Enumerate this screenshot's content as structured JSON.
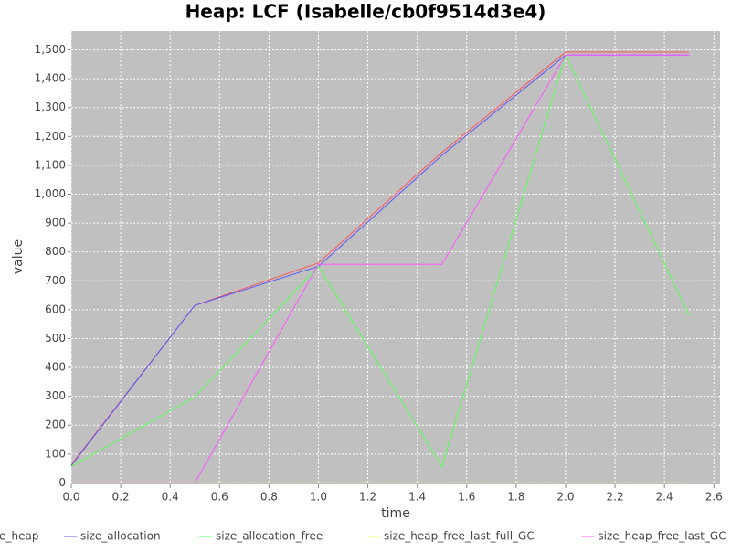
{
  "chart_data": {
    "type": "line",
    "title": "Heap: LCF (Isabelle/cb0f9514d3e4)",
    "x_label": "time",
    "y_label": "value",
    "x": [
      0.0,
      0.5,
      1.0,
      1.5,
      2.0,
      2.5
    ],
    "series": [
      {
        "name": "size_heap",
        "color": "#ff5555",
        "values": [
          63,
          615,
          762,
          1145,
          1492,
          1492
        ]
      },
      {
        "name": "size_allocation",
        "color": "#5555ff",
        "values": [
          60,
          615,
          750,
          1135,
          1482,
          1482
        ]
      },
      {
        "name": "size_allocation_free",
        "color": "#55ff55",
        "values": [
          57,
          298,
          750,
          57,
          1482,
          580
        ]
      },
      {
        "name": "size_heap_free_last_full_GC",
        "color": "#ffff55",
        "values": [
          0,
          0,
          0,
          0,
          0,
          0
        ]
      },
      {
        "name": "size_heap_free_last_GC",
        "color": "#ff55ff",
        "values": [
          0,
          0,
          757,
          757,
          1482,
          1482
        ]
      }
    ],
    "xlim": [
      0,
      2.625
    ],
    "xticks": [
      {
        "value": 0,
        "label": "0.0"
      },
      0.2,
      0.4,
      0.6,
      0.8,
      {
        "value": 1,
        "label": "1.0"
      },
      1.2,
      1.4,
      1.6,
      1.8,
      {
        "value": 2,
        "label": "2.0"
      },
      2.2,
      2.4,
      2.6
    ],
    "ylim": [
      -5,
      1565
    ],
    "yticks": [
      0,
      100,
      200,
      300,
      400,
      500,
      600,
      700,
      800,
      900,
      {
        "value": 1000,
        "label": "1,000"
      },
      {
        "value": 1100,
        "label": "1,100"
      },
      {
        "value": 1200,
        "label": "1,200"
      },
      {
        "value": 1300,
        "label": "1,300"
      },
      {
        "value": 1400,
        "label": "1,400"
      },
      {
        "value": 1500,
        "label": "1,500"
      }
    ],
    "grid": true,
    "legend": "bottom"
  }
}
